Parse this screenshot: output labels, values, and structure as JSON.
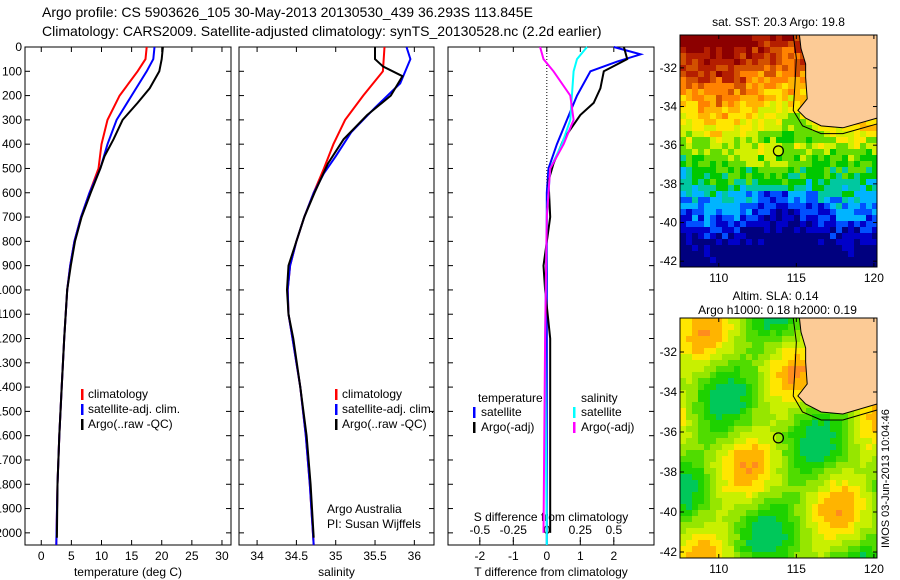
{
  "title_line1": "Argo profile: CS 5903626_105 30-May-2013 20130530_439 36.293S 113.845E",
  "title_line2": "Climatology: CARS2009. Satellite-adjusted climatology: synTS_20130528.nc (2.2d earlier)",
  "stamp": "IMOS 03-Jun-2013 10:04:46",
  "chart_data": [
    {
      "type": "line",
      "id": "temperature",
      "xlabel": "temperature (deg C)",
      "ylabel": "",
      "xlim": [
        -2.7,
        31.5
      ],
      "ylim": [
        2050,
        0
      ],
      "xticks": [
        0,
        5,
        10,
        15,
        20,
        25,
        30
      ],
      "yticks": [
        0,
        100,
        200,
        300,
        400,
        500,
        600,
        700,
        800,
        900,
        1000,
        1100,
        1200,
        1300,
        1400,
        1500,
        1600,
        1700,
        1800,
        1900,
        2000
      ],
      "legend": [
        "climatology",
        "satellite-adj. clim.",
        "Argo(..raw -QC)"
      ],
      "series": [
        {
          "name": "climatology",
          "color": "#ff0000",
          "points": [
            [
              17.5,
              0
            ],
            [
              17.3,
              50
            ],
            [
              16,
              100
            ],
            [
              13,
              200
            ],
            [
              11,
              300
            ],
            [
              10,
              400
            ],
            [
              9.5,
              500
            ],
            [
              8,
              600
            ],
            [
              6.6,
              700
            ],
            [
              5.5,
              800
            ],
            [
              4.8,
              900
            ],
            [
              4.3,
              1000
            ],
            [
              3.8,
              1200
            ],
            [
              3.4,
              1400
            ],
            [
              3.0,
              1600
            ],
            [
              2.7,
              1800
            ],
            [
              2.5,
              2050
            ]
          ]
        },
        {
          "name": "satellite-adj. clim.",
          "color": "#0000ff",
          "points": [
            [
              18.8,
              0
            ],
            [
              18.6,
              50
            ],
            [
              17.5,
              100
            ],
            [
              15,
              200
            ],
            [
              12.5,
              300
            ],
            [
              11,
              400
            ],
            [
              9.8,
              500
            ],
            [
              8,
              600
            ],
            [
              6.6,
              700
            ],
            [
              5.5,
              800
            ],
            [
              4.8,
              900
            ],
            [
              4.3,
              1000
            ],
            [
              3.8,
              1200
            ],
            [
              3.4,
              1400
            ],
            [
              3.0,
              1600
            ],
            [
              2.7,
              1800
            ],
            [
              2.5,
              2050
            ]
          ]
        },
        {
          "name": "Argo(..raw -QC)",
          "color": "#000000",
          "points": [
            [
              20.2,
              0
            ],
            [
              20,
              50
            ],
            [
              19.6,
              100
            ],
            [
              18,
              170
            ],
            [
              16,
              230
            ],
            [
              13.5,
              300
            ],
            [
              12,
              380
            ],
            [
              10.5,
              450
            ],
            [
              9.8,
              500
            ],
            [
              8.2,
              600
            ],
            [
              6.7,
              700
            ],
            [
              5.6,
              800
            ],
            [
              4.9,
              900
            ],
            [
              4.3,
              1000
            ],
            [
              3.8,
              1200
            ],
            [
              3.4,
              1400
            ],
            [
              3.0,
              1600
            ],
            [
              2.7,
              1800
            ],
            [
              2.6,
              2020
            ]
          ]
        }
      ]
    },
    {
      "type": "line",
      "id": "salinity",
      "xlabel": "salinity",
      "xlim": [
        33.77,
        36.25
      ],
      "ylim": [
        2050,
        0
      ],
      "xticks": [
        34,
        34.5,
        35,
        35.5,
        36
      ],
      "legend": [
        "climatology",
        "satellite-adj. clim.",
        "Argo(..raw -QC)"
      ],
      "annotation": [
        "Argo Australia",
        "PI: Susan Wijffels"
      ],
      "series": [
        {
          "name": "climatology",
          "color": "#ff0000",
          "points": [
            [
              35.62,
              0
            ],
            [
              35.6,
              100
            ],
            [
              35.35,
              200
            ],
            [
              35.12,
              300
            ],
            [
              34.97,
              400
            ],
            [
              34.85,
              500
            ],
            [
              34.72,
              600
            ],
            [
              34.6,
              700
            ],
            [
              34.5,
              800
            ],
            [
              34.42,
              900
            ],
            [
              34.39,
              1000
            ],
            [
              34.4,
              1100
            ],
            [
              34.45,
              1200
            ],
            [
              34.55,
              1400
            ],
            [
              34.62,
              1600
            ],
            [
              34.67,
              1800
            ],
            [
              34.72,
              2050
            ]
          ]
        },
        {
          "name": "satellite-adj. clim.",
          "color": "#0000ff",
          "points": [
            [
              35.9,
              0
            ],
            [
              35.95,
              50
            ],
            [
              35.82,
              150
            ],
            [
              35.5,
              250
            ],
            [
              35.2,
              350
            ],
            [
              35.0,
              450
            ],
            [
              34.85,
              520
            ],
            [
              34.72,
              600
            ],
            [
              34.6,
              700
            ],
            [
              34.5,
              800
            ],
            [
              34.42,
              900
            ],
            [
              34.39,
              1000
            ],
            [
              34.4,
              1100
            ],
            [
              34.45,
              1200
            ],
            [
              34.55,
              1400
            ],
            [
              34.62,
              1600
            ],
            [
              34.67,
              1800
            ],
            [
              34.72,
              2050
            ]
          ]
        },
        {
          "name": "Argo(..raw -QC)",
          "color": "#000000",
          "points": [
            [
              35.5,
              0
            ],
            [
              35.5,
              50
            ],
            [
              35.6,
              80
            ],
            [
              35.85,
              120
            ],
            [
              35.7,
              200
            ],
            [
              35.4,
              280
            ],
            [
              35.1,
              380
            ],
            [
              34.9,
              480
            ],
            [
              34.73,
              600
            ],
            [
              34.6,
              700
            ],
            [
              34.5,
              800
            ],
            [
              34.4,
              900
            ],
            [
              34.38,
              1000
            ],
            [
              34.4,
              1100
            ],
            [
              34.46,
              1200
            ],
            [
              34.55,
              1400
            ],
            [
              34.63,
              1600
            ],
            [
              34.68,
              1800
            ],
            [
              34.72,
              2020
            ]
          ]
        }
      ]
    },
    {
      "type": "line",
      "id": "difference",
      "xlabel": "T difference from climatology",
      "x2label": "S difference from climatology",
      "xlim": [
        -2.95,
        3.2
      ],
      "ylim": [
        2050,
        0
      ],
      "xticks": [
        -2,
        -1,
        0,
        1,
        2
      ],
      "x2ticks": [
        "-0.5",
        "-0.25",
        "0",
        "0.25",
        "0.5"
      ],
      "legend_temperature": {
        "header": "temperature",
        "items": [
          "satellite",
          "Argo(-adj)"
        ]
      },
      "legend_salinity": {
        "header": "salinity",
        "items": [
          "satellite",
          "Argo(-adj)"
        ]
      },
      "series": [
        {
          "name": "T satellite",
          "color": "#0000ff",
          "points": [
            [
              2.0,
              0
            ],
            [
              2.8,
              30
            ],
            [
              2.1,
              60
            ],
            [
              1.3,
              100
            ],
            [
              0.9,
              200
            ],
            [
              0.6,
              300
            ],
            [
              0.3,
              400
            ],
            [
              0.05,
              500
            ],
            [
              0,
              600
            ],
            [
              0,
              2050
            ]
          ]
        },
        {
          "name": "T Argo(-adj)",
          "color": "#000000",
          "points": [
            [
              2.3,
              0
            ],
            [
              2.4,
              50
            ],
            [
              1.7,
              100
            ],
            [
              1.6,
              170
            ],
            [
              1.4,
              230
            ],
            [
              1.0,
              280
            ],
            [
              0.5,
              380
            ],
            [
              0.2,
              480
            ],
            [
              0.05,
              550
            ],
            [
              0.1,
              700
            ],
            [
              -0.1,
              900
            ],
            [
              -0.05,
              1000
            ],
            [
              0.1,
              1200
            ],
            [
              0.1,
              1600
            ],
            [
              0.1,
              2000
            ]
          ]
        },
        {
          "name": "S satellite",
          "color": "#00ffff",
          "points": [
            [
              1.2,
              0
            ],
            [
              0.9,
              50
            ],
            [
              0.8,
              100
            ],
            [
              0.75,
              200
            ],
            [
              0.7,
              300
            ],
            [
              0.45,
              400
            ],
            [
              0.1,
              500
            ],
            [
              0,
              700
            ],
            [
              -0.05,
              1200
            ],
            [
              0,
              2050
            ]
          ]
        },
        {
          "name": "S Argo(-adj)",
          "color": "#ff00ff",
          "points": [
            [
              -0.2,
              0
            ],
            [
              -0.1,
              50
            ],
            [
              0.2,
              100
            ],
            [
              0.7,
              200
            ],
            [
              0.8,
              300
            ],
            [
              0.5,
              400
            ],
            [
              0.1,
              500
            ],
            [
              0,
              700
            ],
            [
              -0.05,
              1200
            ],
            [
              -0.1,
              2000
            ]
          ]
        }
      ]
    },
    {
      "type": "heatmap",
      "id": "sst-map",
      "title": "sat. SST: 20.3 Argo: 19.8",
      "xlim": [
        107.5,
        120.2
      ],
      "ylim": [
        -42.3,
        -30.3
      ],
      "xticks": [
        110,
        115,
        120
      ],
      "yticks": [
        -32,
        -34,
        -36,
        -38,
        -40,
        -42
      ],
      "argo_position": [
        113.845,
        -36.293
      ]
    },
    {
      "type": "heatmap",
      "id": "sla-map",
      "title_line1": "Altim. SLA: 0.14",
      "title_line2": "Argo h1000: 0.18 h2000: 0.19",
      "xlim": [
        107.5,
        120.2
      ],
      "ylim": [
        -42.3,
        -30.3
      ],
      "xticks": [
        110,
        115,
        120
      ],
      "yticks": [
        -32,
        -34,
        -36,
        -38,
        -40,
        -42
      ],
      "argo_position": [
        113.845,
        -36.293
      ]
    }
  ]
}
